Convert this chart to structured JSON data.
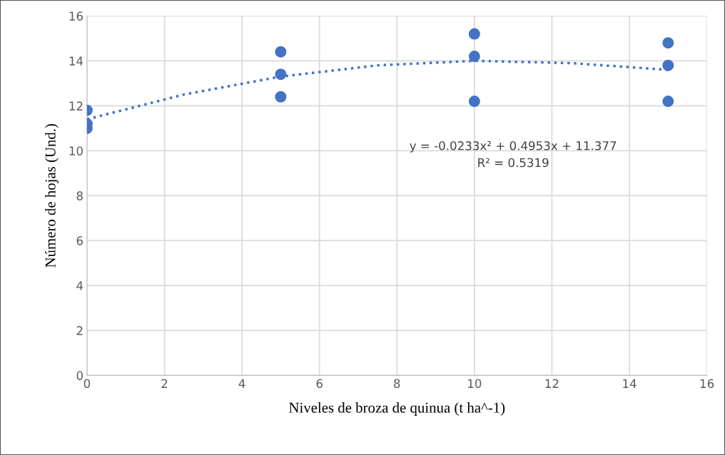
{
  "chart_data": {
    "type": "scatter",
    "xlabel": "Niveles de broza de quinua (t ha^-1)",
    "ylabel": "Número de hojas (Und.)",
    "series": [
      {
        "color": "#4472c4",
        "marker": "circle",
        "x": [
          0,
          0,
          0,
          5,
          5,
          5,
          10,
          10,
          10,
          15,
          15,
          15
        ],
        "values": [
          11.8,
          11.2,
          11.0,
          14.4,
          13.4,
          12.4,
          15.2,
          14.2,
          12.2,
          14.8,
          13.8,
          12.2
        ]
      },
      {
        "type": "line",
        "color": "#4472c4",
        "line_style": "dotted",
        "marker": "none",
        "x": [
          0,
          2.5,
          5,
          7.5,
          10,
          12.5,
          15
        ],
        "values": [
          11.4,
          12.5,
          13.3,
          13.8,
          14.0,
          13.9,
          13.6
        ]
      }
    ],
    "annotations": [
      "y = -0.0233x² + 0.4953x + 11.377\nR² = 0.5319"
    ],
    "xlim": [
      0,
      16
    ],
    "xticks": [
      0,
      2,
      4,
      6,
      8,
      10,
      12,
      14,
      16
    ],
    "ylim": [
      0,
      16
    ],
    "yticks": [
      0,
      2,
      4,
      6,
      8,
      10,
      12,
      14,
      16
    ],
    "grid": true
  }
}
